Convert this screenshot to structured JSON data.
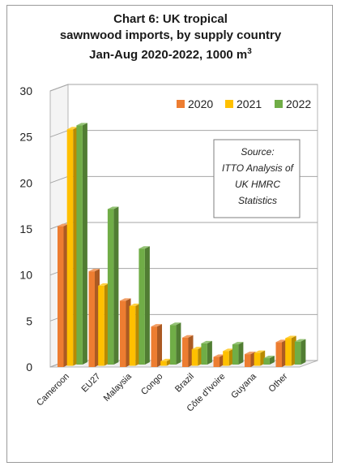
{
  "chart_data": {
    "type": "bar",
    "title_lines": [
      "Chart 6: UK tropical",
      "sawnwood imports, by supply country"
    ],
    "title_line3": "Jan-Aug 2020-2022, 1000 m",
    "title_sup": "3",
    "categories": [
      "Cameroon",
      "EU27",
      "Malaysia",
      "Congo",
      "Brazil",
      "Côte d'Ivoire",
      "Guyana",
      "Other"
    ],
    "series": [
      {
        "name": "2020",
        "color": "#ed7d31",
        "values": [
          15.3,
          10.4,
          7.2,
          4.4,
          3.2,
          1.1,
          1.4,
          2.7
        ]
      },
      {
        "name": "2021",
        "color": "#ffc000",
        "values": [
          25.7,
          8.7,
          6.5,
          0.5,
          1.8,
          1.6,
          1.4,
          3.0
        ]
      },
      {
        "name": "2022",
        "color": "#70ad47",
        "values": [
          26.0,
          16.9,
          12.6,
          4.3,
          2.3,
          2.2,
          0.7,
          2.5
        ]
      }
    ],
    "ylim": [
      0,
      30
    ],
    "yticks": [
      0,
      5,
      10,
      15,
      20,
      25,
      30
    ],
    "grid": true,
    "legend": "top-right",
    "source_lines": [
      "Source:",
      "ITTO Analysis of",
      "UK HMRC",
      "Statistics"
    ]
  }
}
